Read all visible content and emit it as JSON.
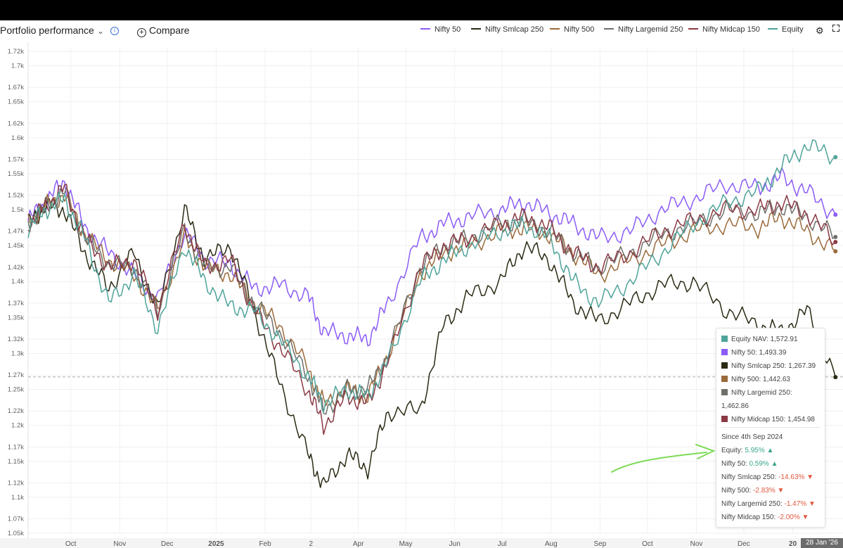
{
  "header": {
    "title": "Portfolio performance",
    "compare_label": "Compare"
  },
  "legend": [
    {
      "name": "Nifty 50",
      "color": "#8b5cf6"
    },
    {
      "name": "Nifty Smlcap 250",
      "color": "#2b2a14"
    },
    {
      "name": "Nifty 500",
      "color": "#9a6a3a"
    },
    {
      "name": "Nifty Largemid 250",
      "color": "#6f6f6a"
    },
    {
      "name": "Nifty Midcap 150",
      "color": "#8b3a44"
    },
    {
      "name": "Equity",
      "color": "#4fa39a"
    }
  ],
  "tooltip": {
    "values": [
      {
        "label": "Equity NAV: 1,572.91",
        "color": "#4fa39a"
      },
      {
        "label": "Nifty 50: 1,493.39",
        "color": "#8b5cf6"
      },
      {
        "label": "Nifty Smlcap 250: 1,267.39",
        "color": "#2b2a14"
      },
      {
        "label": "Nifty 500: 1,442.63",
        "color": "#9a6a3a"
      },
      {
        "label": "Nifty Largemid 250:",
        "label2": "1,462.86",
        "color": "#6f6f6a"
      },
      {
        "label": "Nifty Midcap 150: 1,454.98",
        "color": "#8b3a44"
      }
    ],
    "since_prefix": "Since ",
    "since_date": "4th Sep 2024",
    "returns": [
      {
        "name": "Equity: ",
        "value": "5.95%",
        "dir": "up"
      },
      {
        "name": "Nifty 50: ",
        "value": "0.59%",
        "dir": "up"
      },
      {
        "name": "Nifty Smlcap 250: ",
        "value": "-14.63%",
        "dir": "down"
      },
      {
        "name": "Nifty 500: ",
        "value": "-2.83%",
        "dir": "down"
      },
      {
        "name": "Nifty Largemid 250: ",
        "value": "-1.47%",
        "dir": "down"
      },
      {
        "name": "Nifty Midcap 150: ",
        "value": "-2.00%",
        "dir": "down"
      }
    ]
  },
  "crosshair_date": "28 Jan '26",
  "chart_data": {
    "type": "line",
    "y_ticks": [
      "1.05k",
      "1.07k",
      "1.1k",
      "1.12k",
      "1.15k",
      "1.17k",
      "1.2k",
      "1.22k",
      "1.25k",
      "1.27k",
      "1.3k",
      "1.32k",
      "1.35k",
      "1.37k",
      "1.4k",
      "1.42k",
      "1.45k",
      "1.47k",
      "1.5k",
      "1.52k",
      "1.55k",
      "1.57k",
      "1.6k",
      "1.62k",
      "1.65k",
      "1.67k",
      "1.7k",
      "1.72k"
    ],
    "ylim": [
      1050,
      1725
    ],
    "x_ticks": [
      {
        "label": "Oct",
        "date": "2024-10-01"
      },
      {
        "label": "Nov",
        "date": "2024-11-01"
      },
      {
        "label": "Dec",
        "date": "2024-12-01"
      },
      {
        "label": "2025",
        "date": "2025-01-01",
        "bold": true
      },
      {
        "label": "Feb",
        "date": "2025-02-01"
      },
      {
        "label": "2",
        "date": "2025-03-02"
      },
      {
        "label": "Apr",
        "date": "2025-04-01"
      },
      {
        "label": "May",
        "date": "2025-05-01"
      },
      {
        "label": "Jun",
        "date": "2025-06-01"
      },
      {
        "label": "Jul",
        "date": "2025-07-01"
      },
      {
        "label": "Aug",
        "date": "2025-08-01"
      },
      {
        "label": "Sep",
        "date": "2025-09-01"
      },
      {
        "label": "Oct",
        "date": "2025-10-01"
      },
      {
        "label": "Nov",
        "date": "2025-11-01"
      },
      {
        "label": "Dec",
        "date": "2025-12-01"
      },
      {
        "label": "20",
        "date": "2026-01-01",
        "bold": true
      }
    ],
    "xlim": [
      "2024-09-04",
      "2026-01-31"
    ],
    "crosshair_y": 1267.39,
    "series": [
      {
        "name": "Nifty 50",
        "color": "#8b5cf6",
        "x": [
          "2024-09-04",
          "2024-09-15",
          "2024-09-27",
          "2024-10-10",
          "2024-10-25",
          "2024-11-10",
          "2024-11-25",
          "2024-12-12",
          "2024-12-25",
          "2025-01-10",
          "2025-01-25",
          "2025-02-10",
          "2025-02-28",
          "2025-03-10",
          "2025-03-25",
          "2025-04-07",
          "2025-04-20",
          "2025-05-10",
          "2025-05-25",
          "2025-06-10",
          "2025-06-30",
          "2025-07-15",
          "2025-07-31",
          "2025-08-15",
          "2025-08-31",
          "2025-09-20",
          "2025-10-10",
          "2025-10-30",
          "2025-11-20",
          "2025-12-10",
          "2025-12-25",
          "2026-01-10",
          "2026-01-28"
        ],
        "y": [
          1485,
          1510,
          1540,
          1475,
          1440,
          1410,
          1375,
          1470,
          1430,
          1425,
          1390,
          1395,
          1380,
          1330,
          1325,
          1320,
          1370,
          1460,
          1480,
          1490,
          1500,
          1510,
          1495,
          1480,
          1460,
          1470,
          1500,
          1515,
          1535,
          1530,
          1545,
          1525,
          1493
        ]
      },
      {
        "name": "Nifty Smlcap 250",
        "color": "#2b2a14",
        "x": [
          "2024-09-04",
          "2024-09-15",
          "2024-09-27",
          "2024-10-10",
          "2024-10-25",
          "2024-11-10",
          "2024-11-25",
          "2024-12-12",
          "2024-12-25",
          "2025-01-10",
          "2025-01-25",
          "2025-02-10",
          "2025-02-28",
          "2025-03-10",
          "2025-03-25",
          "2025-04-07",
          "2025-04-20",
          "2025-05-10",
          "2025-05-25",
          "2025-06-10",
          "2025-06-30",
          "2025-07-15",
          "2025-07-31",
          "2025-08-15",
          "2025-08-31",
          "2025-09-20",
          "2025-10-10",
          "2025-10-30",
          "2025-11-20",
          "2025-12-10",
          "2025-12-25",
          "2026-01-10",
          "2026-01-28"
        ],
        "y": [
          1480,
          1505,
          1500,
          1440,
          1390,
          1440,
          1360,
          1500,
          1430,
          1450,
          1360,
          1260,
          1160,
          1115,
          1160,
          1140,
          1220,
          1220,
          1340,
          1380,
          1400,
          1450,
          1430,
          1370,
          1345,
          1370,
          1395,
          1400,
          1360,
          1340,
          1330,
          1360,
          1267
        ]
      },
      {
        "name": "Nifty 500",
        "color": "#9a6a3a",
        "x": [
          "2024-09-04",
          "2024-09-15",
          "2024-09-27",
          "2024-10-10",
          "2024-10-25",
          "2024-11-10",
          "2024-11-25",
          "2024-12-12",
          "2024-12-25",
          "2025-01-10",
          "2025-01-25",
          "2025-02-10",
          "2025-02-28",
          "2025-03-10",
          "2025-03-25",
          "2025-04-07",
          "2025-04-20",
          "2025-05-10",
          "2025-05-25",
          "2025-06-10",
          "2025-06-30",
          "2025-07-15",
          "2025-07-31",
          "2025-08-15",
          "2025-08-31",
          "2025-09-20",
          "2025-10-10",
          "2025-10-30",
          "2025-11-20",
          "2025-12-10",
          "2025-12-25",
          "2026-01-10",
          "2026-01-28"
        ],
        "y": [
          1480,
          1505,
          1520,
          1465,
          1430,
          1410,
          1360,
          1460,
          1420,
          1410,
          1370,
          1340,
          1280,
          1230,
          1250,
          1240,
          1300,
          1410,
          1440,
          1450,
          1470,
          1475,
          1465,
          1440,
          1410,
          1430,
          1450,
          1470,
          1480,
          1475,
          1490,
          1470,
          1442
        ]
      },
      {
        "name": "Nifty Largemid 250",
        "color": "#6f6f6a",
        "x": [
          "2024-09-04",
          "2024-09-15",
          "2024-09-27",
          "2024-10-10",
          "2024-10-25",
          "2024-11-10",
          "2024-11-25",
          "2024-12-12",
          "2024-12-25",
          "2025-01-10",
          "2025-01-25",
          "2025-02-10",
          "2025-02-28",
          "2025-03-10",
          "2025-03-25",
          "2025-04-07",
          "2025-04-20",
          "2025-05-10",
          "2025-05-25",
          "2025-06-10",
          "2025-06-30",
          "2025-07-15",
          "2025-07-31",
          "2025-08-15",
          "2025-08-31",
          "2025-09-20",
          "2025-10-10",
          "2025-10-30",
          "2025-11-20",
          "2025-12-10",
          "2025-12-25",
          "2026-01-10",
          "2026-01-28"
        ],
        "y": [
          1480,
          1505,
          1525,
          1460,
          1425,
          1420,
          1360,
          1470,
          1420,
          1420,
          1370,
          1330,
          1270,
          1220,
          1250,
          1250,
          1300,
          1420,
          1450,
          1460,
          1480,
          1485,
          1470,
          1440,
          1420,
          1440,
          1465,
          1480,
          1500,
          1495,
          1505,
          1490,
          1462
        ]
      },
      {
        "name": "Nifty Midcap 150",
        "color": "#8b3a44",
        "x": [
          "2024-09-04",
          "2024-09-15",
          "2024-09-27",
          "2024-10-10",
          "2024-10-25",
          "2024-11-10",
          "2024-11-25",
          "2024-12-12",
          "2024-12-25",
          "2025-01-10",
          "2025-01-25",
          "2025-02-10",
          "2025-02-28",
          "2025-03-10",
          "2025-03-25",
          "2025-04-07",
          "2025-04-20",
          "2025-05-10",
          "2025-05-25",
          "2025-06-10",
          "2025-06-30",
          "2025-07-15",
          "2025-07-31",
          "2025-08-15",
          "2025-08-31",
          "2025-09-20",
          "2025-10-10",
          "2025-10-30",
          "2025-11-20",
          "2025-12-10",
          "2025-12-25",
          "2026-01-10",
          "2026-01-28"
        ],
        "y": [
          1480,
          1505,
          1530,
          1460,
          1420,
          1430,
          1360,
          1480,
          1420,
          1430,
          1360,
          1310,
          1250,
          1200,
          1240,
          1230,
          1290,
          1420,
          1450,
          1460,
          1480,
          1490,
          1475,
          1440,
          1420,
          1440,
          1470,
          1485,
          1500,
          1500,
          1510,
          1495,
          1455
        ]
      },
      {
        "name": "Equity",
        "color": "#4fa39a",
        "x": [
          "2024-09-04",
          "2024-09-15",
          "2024-09-27",
          "2024-10-10",
          "2024-10-25",
          "2024-11-10",
          "2024-11-25",
          "2024-12-12",
          "2024-12-25",
          "2025-01-10",
          "2025-01-25",
          "2025-02-10",
          "2025-02-28",
          "2025-03-10",
          "2025-03-25",
          "2025-04-07",
          "2025-04-20",
          "2025-05-10",
          "2025-05-25",
          "2025-06-10",
          "2025-06-30",
          "2025-07-15",
          "2025-07-31",
          "2025-08-15",
          "2025-08-31",
          "2025-09-20",
          "2025-10-10",
          "2025-10-30",
          "2025-11-20",
          "2025-12-10",
          "2025-12-25",
          "2026-01-10",
          "2026-01-28"
        ],
        "y": [
          1475,
          1500,
          1515,
          1460,
          1370,
          1410,
          1335,
          1450,
          1400,
          1365,
          1360,
          1320,
          1270,
          1230,
          1250,
          1240,
          1290,
          1400,
          1430,
          1450,
          1470,
          1480,
          1460,
          1400,
          1370,
          1400,
          1440,
          1480,
          1510,
          1525,
          1560,
          1590,
          1573
        ]
      }
    ]
  }
}
